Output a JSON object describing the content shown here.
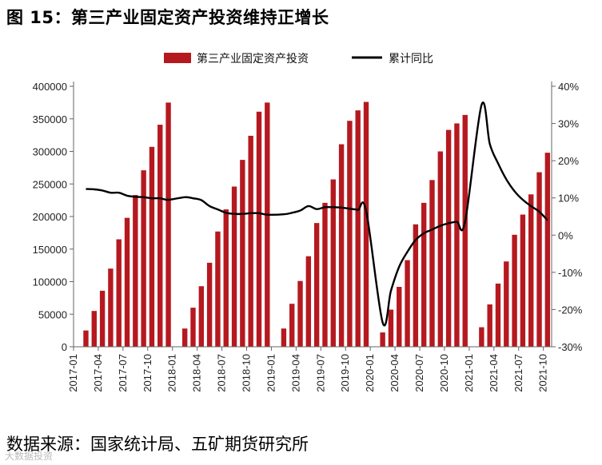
{
  "title": "图 15：第三产业固定资产投资维持正增长",
  "source": "数据来源：国家统计局、五矿期货研究所",
  "watermark": "大数据投资",
  "colors": {
    "bar": "#b5191f",
    "line": "#000000",
    "axis": "#666666"
  },
  "chart_data": {
    "type": "bar",
    "legend": [
      "第三产业固定资产投资",
      "累计同比"
    ],
    "legend_position": "top",
    "y_left": {
      "ylim": [
        0,
        400000
      ],
      "ticks": [
        "0",
        "50000",
        "100000",
        "150000",
        "200000",
        "250000",
        "300000",
        "350000",
        "400000"
      ]
    },
    "y_right": {
      "ylim": [
        -30,
        40
      ],
      "ticks": [
        "-30%",
        "-20%",
        "-10%",
        "0%",
        "10%",
        "20%",
        "30%",
        "40%"
      ]
    },
    "x_ticks": [
      "2017-01",
      "2017-04",
      "2017-07",
      "2017-10",
      "2018-01",
      "2018-04",
      "2018-07",
      "2018-10",
      "2019-01",
      "2019-04",
      "2019-07",
      "2019-10",
      "2020-01",
      "2020-04",
      "2020-07",
      "2020-10",
      "2021-01",
      "2021-04",
      "2021-07",
      "2021-10"
    ],
    "series": [
      {
        "name": "第三产业固定资产投资",
        "type": "bar",
        "axis": "left",
        "points": [
          [
            "2017-02",
            25000
          ],
          [
            "2017-03",
            55000
          ],
          [
            "2017-04",
            86000
          ],
          [
            "2017-05",
            120000
          ],
          [
            "2017-06",
            165000
          ],
          [
            "2017-07",
            198000
          ],
          [
            "2017-08",
            233000
          ],
          [
            "2017-09",
            271000
          ],
          [
            "2017-10",
            307000
          ],
          [
            "2017-11",
            341000
          ],
          [
            "2017-12",
            375000
          ],
          [
            "2018-02",
            28000
          ],
          [
            "2018-03",
            60000
          ],
          [
            "2018-04",
            93000
          ],
          [
            "2018-05",
            129000
          ],
          [
            "2018-06",
            177000
          ],
          [
            "2018-07",
            211000
          ],
          [
            "2018-08",
            246000
          ],
          [
            "2018-09",
            287000
          ],
          [
            "2018-10",
            324000
          ],
          [
            "2018-11",
            361000
          ],
          [
            "2018-12",
            375000
          ],
          [
            "2019-02",
            28000
          ],
          [
            "2019-03",
            66000
          ],
          [
            "2019-04",
            101000
          ],
          [
            "2019-05",
            139000
          ],
          [
            "2019-06",
            190000
          ],
          [
            "2019-07",
            221000
          ],
          [
            "2019-08",
            257000
          ],
          [
            "2019-09",
            311000
          ],
          [
            "2019-10",
            347000
          ],
          [
            "2019-11",
            363000
          ],
          [
            "2019-12",
            376000
          ],
          [
            "2020-02",
            22000
          ],
          [
            "2020-03",
            57000
          ],
          [
            "2020-04",
            92000
          ],
          [
            "2020-05",
            133000
          ],
          [
            "2020-06",
            188000
          ],
          [
            "2020-07",
            221000
          ],
          [
            "2020-08",
            256000
          ],
          [
            "2020-09",
            300000
          ],
          [
            "2020-10",
            333000
          ],
          [
            "2020-11",
            343000
          ],
          [
            "2020-12",
            356000
          ],
          [
            "2021-02",
            30000
          ],
          [
            "2021-03",
            65000
          ],
          [
            "2021-04",
            97000
          ],
          [
            "2021-05",
            131000
          ],
          [
            "2021-06",
            172000
          ],
          [
            "2021-07",
            203000
          ],
          [
            "2021-08",
            234000
          ],
          [
            "2021-09",
            268000
          ],
          [
            "2021-10",
            298000
          ]
        ]
      },
      {
        "name": "累计同比",
        "type": "line",
        "axis": "right",
        "points": [
          [
            "2017-02",
            12.4
          ],
          [
            "2017-03",
            12.3
          ],
          [
            "2017-04",
            12.0
          ],
          [
            "2017-05",
            11.4
          ],
          [
            "2017-06",
            11.4
          ],
          [
            "2017-07",
            10.6
          ],
          [
            "2017-08",
            10.3
          ],
          [
            "2017-09",
            10.2
          ],
          [
            "2017-10",
            9.9
          ],
          [
            "2017-11",
            9.9
          ],
          [
            "2017-12",
            9.5
          ],
          [
            "2018-02",
            10.2
          ],
          [
            "2018-03",
            9.9
          ],
          [
            "2018-04",
            9.4
          ],
          [
            "2018-05",
            7.8
          ],
          [
            "2018-06",
            6.9
          ],
          [
            "2018-07",
            6.0
          ],
          [
            "2018-08",
            5.7
          ],
          [
            "2018-09",
            5.7
          ],
          [
            "2018-10",
            5.9
          ],
          [
            "2018-11",
            5.9
          ],
          [
            "2018-12",
            5.5
          ],
          [
            "2019-02",
            5.6
          ],
          [
            "2019-03",
            6.0
          ],
          [
            "2019-04",
            6.6
          ],
          [
            "2019-05",
            7.8
          ],
          [
            "2019-06",
            7.0
          ],
          [
            "2019-07",
            7.5
          ],
          [
            "2019-08",
            7.5
          ],
          [
            "2019-09",
            7.4
          ],
          [
            "2019-10",
            7.1
          ],
          [
            "2019-11",
            6.8
          ],
          [
            "2019-12",
            6.5
          ],
          [
            "2020-02",
            -23.5
          ],
          [
            "2020-03",
            -15.0
          ],
          [
            "2020-04",
            -8.5
          ],
          [
            "2020-05",
            -4.5
          ],
          [
            "2020-06",
            -1.3
          ],
          [
            "2020-07",
            0.5
          ],
          [
            "2020-08",
            1.5
          ],
          [
            "2020-09",
            2.5
          ],
          [
            "2020-10",
            3.2
          ],
          [
            "2020-11",
            3.6
          ],
          [
            "2020-12",
            3.6
          ],
          [
            "2021-02",
            35.0
          ],
          [
            "2021-03",
            24.5
          ],
          [
            "2021-04",
            19.3
          ],
          [
            "2021-05",
            15.0
          ],
          [
            "2021-06",
            11.8
          ],
          [
            "2021-07",
            9.5
          ],
          [
            "2021-08",
            7.8
          ],
          [
            "2021-09",
            6.3
          ],
          [
            "2021-10",
            4.0
          ]
        ]
      }
    ]
  }
}
